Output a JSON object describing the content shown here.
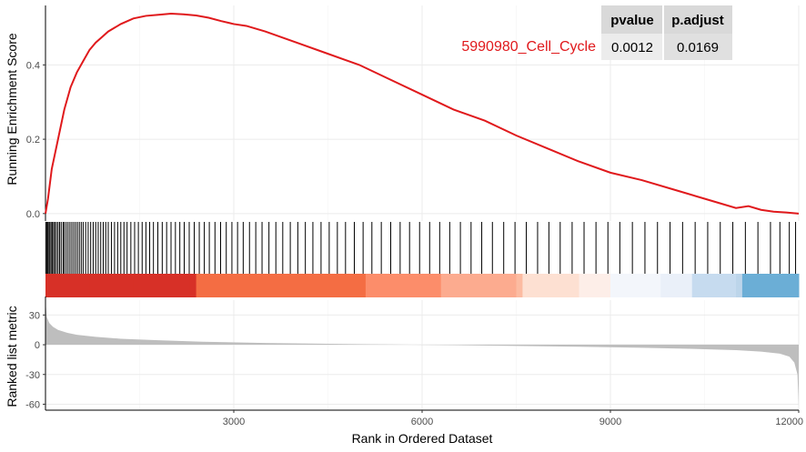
{
  "chart_data": {
    "type": "line",
    "title": "",
    "gene_set": "5990980_Cell_Cycle",
    "line_color": "#e0191c",
    "stats": {
      "headers": [
        "pvalue",
        "p.adjust"
      ],
      "values": [
        "0.0012",
        "0.0169"
      ]
    },
    "top_panel": {
      "ylabel": "Running Enrichment Score",
      "ylim": [
        -0.02,
        0.56
      ],
      "yticks": [
        0.0,
        0.2,
        0.4
      ],
      "ytick_labels": [
        "0.0",
        "0.2",
        "0.4"
      ],
      "series": [
        {
          "name": "Running Enrichment Score",
          "x": [
            0,
            40,
            100,
            200,
            300,
            400,
            500,
            600,
            700,
            800,
            900,
            1000,
            1100,
            1200,
            1400,
            1600,
            1800,
            2000,
            2200,
            2400,
            2600,
            2800,
            3000,
            3200,
            3500,
            4000,
            4500,
            5000,
            5500,
            6000,
            6500,
            7000,
            7500,
            8000,
            8500,
            9000,
            9500,
            10000,
            10500,
            10800,
            11000,
            11200,
            11400,
            11600,
            11800,
            12000
          ],
          "y": [
            0.0,
            0.04,
            0.12,
            0.2,
            0.28,
            0.34,
            0.38,
            0.41,
            0.44,
            0.46,
            0.475,
            0.49,
            0.5,
            0.51,
            0.525,
            0.532,
            0.535,
            0.538,
            0.536,
            0.533,
            0.527,
            0.518,
            0.51,
            0.505,
            0.49,
            0.46,
            0.43,
            0.4,
            0.36,
            0.32,
            0.28,
            0.25,
            0.21,
            0.175,
            0.14,
            0.11,
            0.09,
            0.065,
            0.04,
            0.025,
            0.015,
            0.02,
            0.01,
            0.005,
            0.003,
            0.0
          ]
        }
      ]
    },
    "hits_panel": {
      "hit_ranks": [
        5,
        20,
        35,
        55,
        70,
        90,
        110,
        130,
        150,
        175,
        200,
        225,
        250,
        280,
        300,
        330,
        360,
        390,
        420,
        450,
        480,
        510,
        540,
        570,
        600,
        640,
        680,
        720,
        760,
        800,
        840,
        880,
        920,
        960,
        1000,
        1050,
        1100,
        1150,
        1200,
        1250,
        1300,
        1360,
        1420,
        1480,
        1540,
        1600,
        1660,
        1720,
        1790,
        1860,
        1930,
        2000,
        2070,
        2140,
        2210,
        2290,
        2370,
        2450,
        2530,
        2610,
        2700,
        2790,
        2880,
        2970,
        3060,
        3150,
        3250,
        3350,
        3450,
        3560,
        3670,
        3780,
        3900,
        4020,
        4140,
        4260,
        4390,
        4520,
        4650,
        4780,
        4920,
        5060,
        5200,
        5350,
        5500,
        5650,
        5800,
        5960,
        6120,
        6280,
        6440,
        6610,
        6780,
        6950,
        7120,
        7300,
        7480,
        7660,
        7840,
        8020,
        8200,
        8390,
        8580,
        8770,
        8960,
        9150,
        9350,
        9550,
        9750,
        9950,
        10150,
        10350,
        10550,
        10750,
        10950,
        11150,
        11350,
        11550,
        11700,
        11850,
        11950
      ],
      "gradient_colors": [
        "#d73027",
        "#d73027",
        "#d73027",
        "#d73027",
        "#f46d43",
        "#f46d43",
        "#f46d43",
        "#fc8d6a",
        "#fc8d6a",
        "#fcab8f",
        "#fcab8f",
        "#fcbba1",
        "#fde0d2",
        "#fdeee8",
        "#f3f6fb",
        "#eaf0f9",
        "#c6dbef",
        "#bcd5ea",
        "#6baed6",
        "#3f8fc5"
      ],
      "gradient_stops": [
        0,
        700,
        1400,
        2300,
        2400,
        3500,
        5000,
        5100,
        6000,
        6300,
        7000,
        7500,
        7600,
        8500,
        9000,
        9800,
        10300,
        11000,
        11100,
        12000
      ]
    },
    "bottom_panel": {
      "ylabel": "Ranked list metric",
      "xlabel": "Rank in Ordered Dataset",
      "ylim": [
        -66,
        45
      ],
      "yticks": [
        30,
        0,
        -30,
        -60
      ],
      "ytick_labels": [
        "30",
        "0",
        "-30",
        "-60"
      ],
      "xlim": [
        0,
        12000
      ],
      "xticks": [
        3000,
        6000,
        9000,
        12000
      ],
      "xtick_labels": [
        "3000",
        "6000",
        "9000",
        "12000"
      ],
      "fill_color": "#bebebe",
      "series": [
        {
          "name": "Ranked list metric",
          "x": [
            0,
            20,
            60,
            120,
            200,
            350,
            500,
            800,
            1200,
            1800,
            2500,
            3500,
            4500,
            5500,
            6500,
            7500,
            8500,
            9500,
            10500,
            11000,
            11400,
            11700,
            11850,
            11930,
            11980,
            12000
          ],
          "y": [
            45,
            28,
            22,
            18,
            15,
            12,
            10,
            8,
            6,
            4.5,
            3,
            1.8,
            1.0,
            0.3,
            -0.4,
            -1.2,
            -2.0,
            -3.0,
            -4.5,
            -5.5,
            -7,
            -9,
            -12,
            -18,
            -30,
            -62
          ]
        }
      ]
    }
  }
}
